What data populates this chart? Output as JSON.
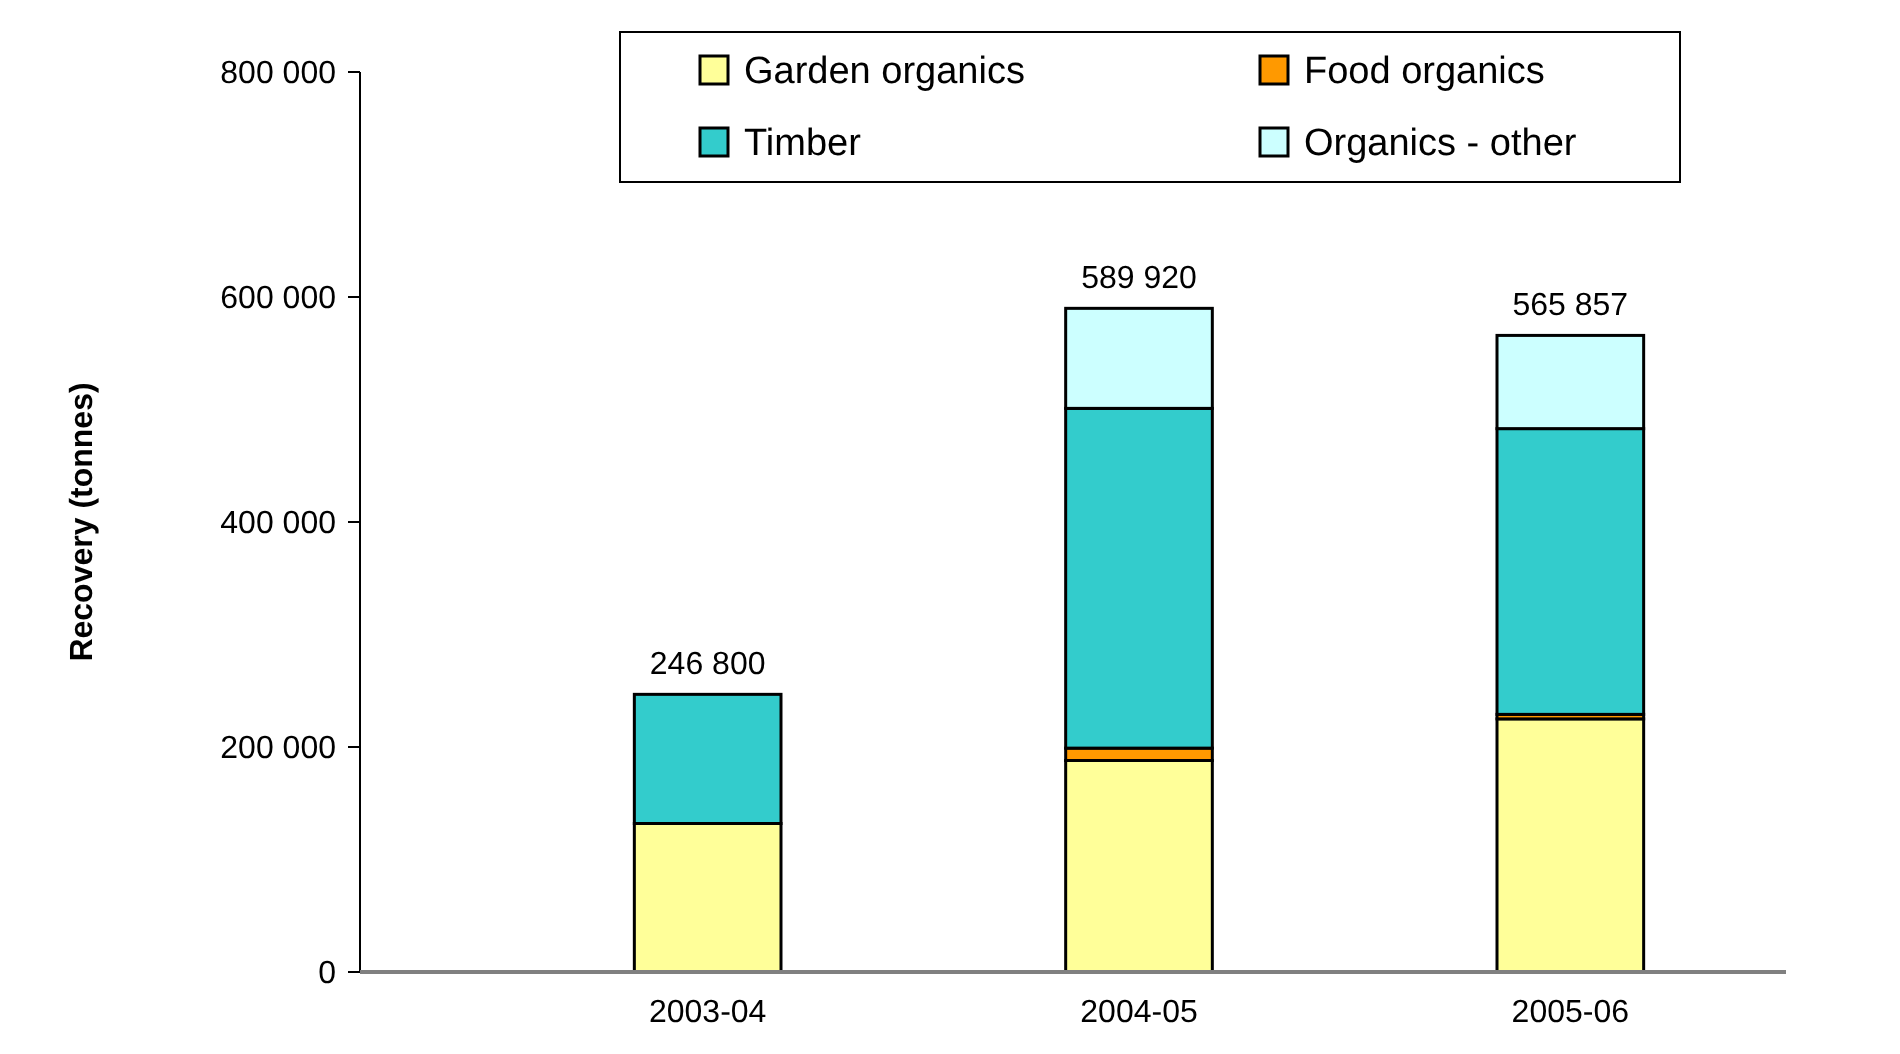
{
  "chart_data": {
    "type": "bar",
    "stacked": true,
    "ylabel": "Recovery (tonnes)",
    "categories": [
      "2003-04",
      "2004-05",
      "2005-06"
    ],
    "series": [
      {
        "name": "Garden organics",
        "color": "#ffff99",
        "values": [
          132000,
          188000,
          225000
        ]
      },
      {
        "name": "Food organics",
        "color": "#ff9900",
        "values": [
          0,
          11000,
          4000
        ]
      },
      {
        "name": "Timber",
        "color": "#33cccc",
        "values": [
          114800,
          302000,
          254000
        ]
      },
      {
        "name": "Organics - other",
        "color": "#ccffff",
        "values": [
          0,
          88920,
          82857
        ]
      }
    ],
    "totals": [
      "246 800",
      "589 920",
      "565 857"
    ],
    "ylim": [
      0,
      800000
    ],
    "yticks": [
      {
        "value": 0,
        "label": "0"
      },
      {
        "value": 200000,
        "label": "200 000"
      },
      {
        "value": 400000,
        "label": "400 000"
      },
      {
        "value": 600000,
        "label": "600 000"
      },
      {
        "value": 800000,
        "label": "800 000"
      }
    ],
    "grid": false,
    "legend": "top right"
  }
}
